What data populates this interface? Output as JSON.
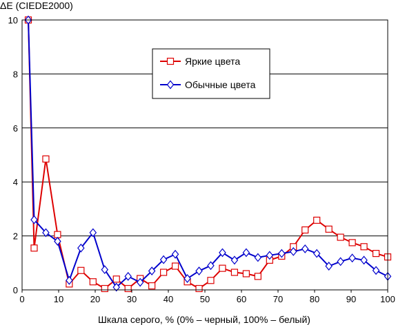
{
  "chart_data": {
    "type": "line",
    "title": "",
    "ylabel": "ΔE (CIEDE2000)",
    "xlabel": "Шкала серого, % (0% – черный, 100% – белый)",
    "xlim": [
      0,
      100
    ],
    "ylim": [
      0,
      10
    ],
    "x_ticks": [
      0,
      10,
      20,
      30,
      40,
      50,
      60,
      70,
      80,
      90,
      100
    ],
    "y_ticks": [
      0,
      2,
      4,
      6,
      8,
      10
    ],
    "grid": "horizontal",
    "legend_position": "top-center",
    "series": [
      {
        "name": "Яркие цвета",
        "color": "#dd0000",
        "marker": "square",
        "x": [
          1.7,
          3.3,
          6.5,
          9.7,
          12.9,
          16.1,
          19.4,
          22.6,
          25.8,
          29.0,
          32.3,
          35.5,
          38.7,
          41.9,
          45.2,
          48.4,
          51.6,
          54.8,
          58.1,
          61.3,
          64.5,
          67.7,
          71.0,
          74.2,
          77.4,
          80.6,
          83.9,
          87.1,
          90.3,
          93.5,
          96.8,
          100.0
        ],
        "values": [
          10.0,
          1.55,
          4.85,
          2.05,
          0.22,
          0.72,
          0.3,
          0.05,
          0.4,
          0.05,
          0.42,
          0.15,
          0.65,
          0.88,
          0.3,
          0.05,
          0.35,
          0.8,
          0.65,
          0.6,
          0.5,
          1.1,
          1.25,
          1.6,
          2.22,
          2.58,
          2.25,
          1.95,
          1.75,
          1.6,
          1.35,
          1.22
        ]
      },
      {
        "name": "Обычные цвета",
        "color": "#0000cc",
        "marker": "diamond",
        "x": [
          1.7,
          3.3,
          6.5,
          9.7,
          12.9,
          16.1,
          19.4,
          22.6,
          25.8,
          29.0,
          32.3,
          35.5,
          38.7,
          41.9,
          45.2,
          48.4,
          51.6,
          54.8,
          58.1,
          61.3,
          64.5,
          67.7,
          71.0,
          74.2,
          77.4,
          80.6,
          83.9,
          87.1,
          90.3,
          93.5,
          96.8,
          100.0
        ],
        "values": [
          10.0,
          2.6,
          2.12,
          1.8,
          0.35,
          1.55,
          2.12,
          0.75,
          0.1,
          0.5,
          0.28,
          0.7,
          1.12,
          1.32,
          0.42,
          0.7,
          0.9,
          1.38,
          1.1,
          1.38,
          1.2,
          1.28,
          1.35,
          1.42,
          1.52,
          1.35,
          0.88,
          1.05,
          1.18,
          1.1,
          0.72,
          0.5
        ]
      }
    ]
  }
}
